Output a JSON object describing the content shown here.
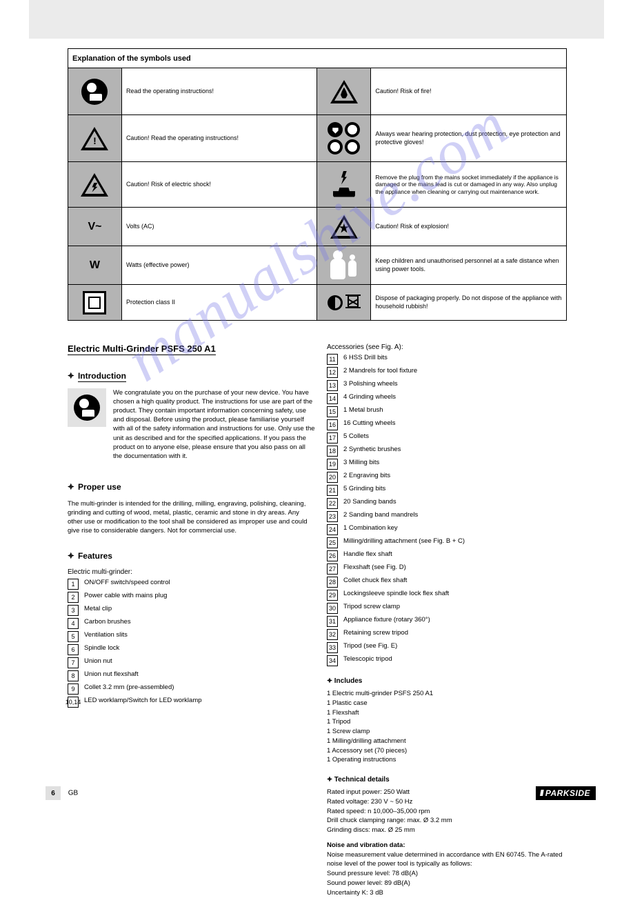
{
  "watermark": "manualshive.com",
  "table": {
    "header": "Explanation of the symbols used",
    "rows": [
      {
        "left_text": "Read the operating instructions!",
        "right_text": "Caution! Risk of fire!"
      },
      {
        "left_text": "Caution! Read the operating instructions!",
        "right_text": "Always wear hearing protection, dust protection, eye protection and protective gloves!"
      },
      {
        "left_text": "Caution! Risk of electric shock!",
        "right_text": "Remove the plug from the mains socket immediately if the appliance is damaged or the mains lead is cut or damaged in any way. Also unplug the appliance when cleaning or carrying out maintenance work."
      },
      {
        "volt": "V~",
        "left_text": "Volts (AC)",
        "right_text": "Caution! Risk of explosion!"
      },
      {
        "watt": "W",
        "left_text": "Watts (effective power)",
        "right_text": "Keep children and unauthorised personnel at a safe distance when using power tools."
      },
      {
        "left_text": "Protection class II",
        "right_text": "Dispose of packaging properly. Do not dispose of the appliance with household rubbish!"
      }
    ]
  },
  "title": "Electric Multi-Grinder PSFS 250 A1",
  "intro_heading": "Introduction",
  "intro_para1": "We congratulate you on the purchase of your new device. You have chosen a high quality product. The instructions for use are part of the product. They contain important information concerning safety, use and disposal. Before using the product, please familiarise yourself with all of the safety information and instructions for use. Only use the unit as described and for the specified applications. If you pass the product on to anyone else, please ensure that you also pass on all the documentation with it.",
  "proper_use_heading": "Proper use",
  "proper_use_para": "The multi-grinder is intended for the drilling, milling, engraving, polishing, cleaning, grinding and cutting of wood, metal, plastic, ceramic and stone in dry areas. Any other use or modification to the tool shall be considered as improper use and could give rise to considerable dangers. Not for commercial use.",
  "features_heading": "Features",
  "features_sub": "Electric multi-grinder:",
  "features": [
    {
      "n": "1",
      "label": "ON/OFF switch/speed control"
    },
    {
      "n": "2",
      "label": "Power cable with mains plug"
    },
    {
      "n": "3",
      "label": "Metal clip"
    },
    {
      "n": "4",
      "label": "Carbon brushes"
    },
    {
      "n": "5",
      "label": "Ventilation slits"
    },
    {
      "n": "6",
      "label": "Spindle lock"
    },
    {
      "n": "7",
      "label": "Union nut"
    },
    {
      "n": "8",
      "label": "Union nut flexshaft"
    },
    {
      "n": "9",
      "label": "Collet 3.2 mm (pre-assembled)"
    },
    {
      "n": "10,14",
      "label": "LED worklamp/Switch for LED worklamp"
    }
  ],
  "accessories_label": "Accessories (see Fig. A):",
  "accessories": [
    {
      "n": "11",
      "label": "6 HSS Drill bits"
    },
    {
      "n": "12",
      "label": "2 Mandrels for tool fixture"
    },
    {
      "n": "13",
      "label": "3 Polishing wheels"
    },
    {
      "n": "14",
      "label": "4 Grinding wheels"
    },
    {
      "n": "15",
      "label": "1 Metal brush"
    },
    {
      "n": "16",
      "label": "16 Cutting wheels"
    },
    {
      "n": "17",
      "label": "5 Collets"
    },
    {
      "n": "18",
      "label": "2 Synthetic brushes"
    },
    {
      "n": "19",
      "label": "3 Milling bits"
    },
    {
      "n": "20",
      "label": "2 Engraving bits"
    },
    {
      "n": "21",
      "label": "5 Grinding bits"
    },
    {
      "n": "22",
      "label": "20 Sanding bands"
    },
    {
      "n": "23",
      "label": "2 Sanding band mandrels"
    },
    {
      "n": "24",
      "label": "1 Combination key"
    },
    {
      "n": "25",
      "label": "Milling/drilling attachment (see Fig. B + C)"
    },
    {
      "n": "26",
      "label": "Handle flex shaft"
    },
    {
      "n": "27",
      "label": "Flexshaft (see Fig. D)"
    },
    {
      "n": "28",
      "label": "Collet chuck flex shaft"
    },
    {
      "n": "29",
      "label": "Lockingsleeve spindle lock flex shaft"
    },
    {
      "n": "30",
      "label": "Tripod screw clamp"
    },
    {
      "n": "31",
      "label": "Appliance fixture (rotary 360°)"
    },
    {
      "n": "32",
      "label": "Retaining screw tripod"
    },
    {
      "n": "33",
      "label": "Tripod (see Fig. E)"
    },
    {
      "n": "34",
      "label": "Telescopic tripod"
    }
  ],
  "includes_heading": "Includes",
  "includes": [
    "1 Electric multi-grinder PSFS 250 A1",
    "1 Plastic case",
    "1 Flexshaft",
    "1 Tripod",
    "1 Screw clamp",
    "1 Milling/drilling attachment",
    "1 Accessory set (70 pieces)",
    "1 Operating instructions"
  ],
  "tech_heading": "Technical details",
  "tech": [
    {
      "k": "Rated input power:",
      "v": "250 Watt"
    },
    {
      "k": "Rated voltage:",
      "v": "230 V ~ 50 Hz"
    },
    {
      "k": "Rated speed:",
      "v": "n 10,000–35,000 rpm"
    },
    {
      "k": "Drill chuck clamping range:",
      "v": "max. Ø 3.2 mm"
    },
    {
      "k": "Grinding discs:",
      "v": "max. Ø 25 mm"
    }
  ],
  "noise_heading": "Noise and vibration data:",
  "noise_intro": "Noise measurement value determined in accordance with EN 60745. The A-rated noise level of the power tool is typically as follows:",
  "noise": [
    {
      "k": "Sound pressure level:",
      "v": "78 dB(A)"
    },
    {
      "k": "Sound power level:",
      "v": "89 dB(A)"
    },
    {
      "k": "Uncertainty K:",
      "v": "3 dB"
    }
  ],
  "footer": {
    "page": "6",
    "lang": "GB",
    "brand": "PARKSIDE"
  }
}
